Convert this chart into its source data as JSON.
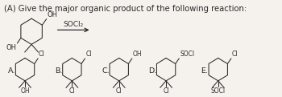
{
  "title": "(A) Give the major organic product of the following reaction:",
  "reagent": "SOCl₂",
  "bg_color": "#f5f2ee",
  "text_color": "#2a2a2a",
  "title_fs": 7.2,
  "label_fs": 6.8,
  "sub_fs": 6.0,
  "choices": [
    {
      "label": "A.",
      "top": "Cl",
      "bot": "OH"
    },
    {
      "label": "B.",
      "top": "Cl",
      "bot": "Cl"
    },
    {
      "label": "C.",
      "top": "OH",
      "bot": "Cl"
    },
    {
      "label": "D.",
      "top": "SOCl",
      "bot": "Cl"
    },
    {
      "label": "E.",
      "top": "Cl",
      "bot": "SOCl"
    }
  ]
}
